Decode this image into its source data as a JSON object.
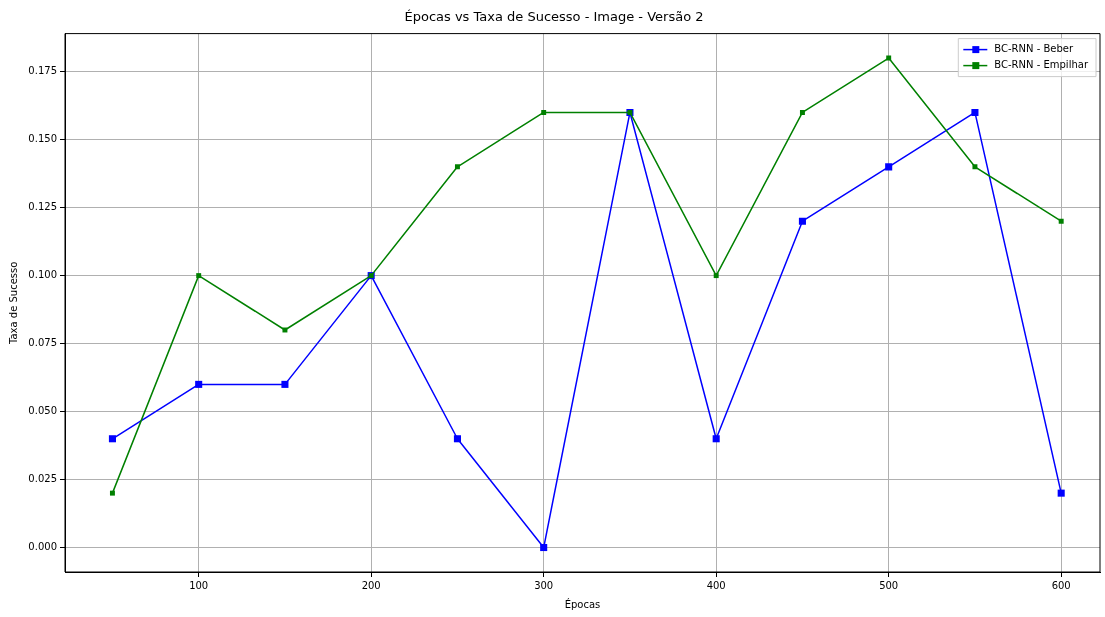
{
  "chart_data": {
    "type": "line",
    "title": "Épocas vs Taxa de Sucesso - Image - Versão 2",
    "xlabel": "Épocas",
    "ylabel": "Taxa de Sucesso",
    "x": [
      50,
      100,
      150,
      200,
      250,
      300,
      350,
      400,
      450,
      500,
      550,
      600
    ],
    "series": [
      {
        "name": "BC-RNN - Beber",
        "color": "#0000ff",
        "values": [
          0.04,
          0.06,
          0.06,
          0.1,
          0.04,
          0.0,
          0.16,
          0.04,
          0.12,
          0.14,
          0.16,
          0.02
        ]
      },
      {
        "name": "BC-RNN - Empilhar",
        "color": "#008000",
        "values": [
          0.02,
          0.1,
          0.08,
          0.1,
          0.14,
          0.16,
          0.16,
          0.1,
          0.16,
          0.18,
          0.14,
          0.12
        ]
      }
    ],
    "xlim": [
      22.5,
      622.5
    ],
    "ylim": [
      -0.009,
      0.189
    ],
    "xticks": [
      100,
      200,
      300,
      400,
      500,
      600
    ],
    "yticks": [
      {
        "value": 0,
        "label": "0.000"
      },
      {
        "value": 0.025,
        "label": "0.025"
      },
      {
        "value": 0.05,
        "label": "0.050"
      },
      {
        "value": 0.075,
        "label": "0.075"
      },
      {
        "value": 0.1,
        "label": "0.100"
      },
      {
        "value": 0.125,
        "label": "0.125"
      },
      {
        "value": 0.15,
        "label": "0.150"
      },
      {
        "value": 0.175,
        "label": "0.175"
      }
    ],
    "grid": true,
    "legend": "top right",
    "marker": "square",
    "line_style": "solid"
  }
}
